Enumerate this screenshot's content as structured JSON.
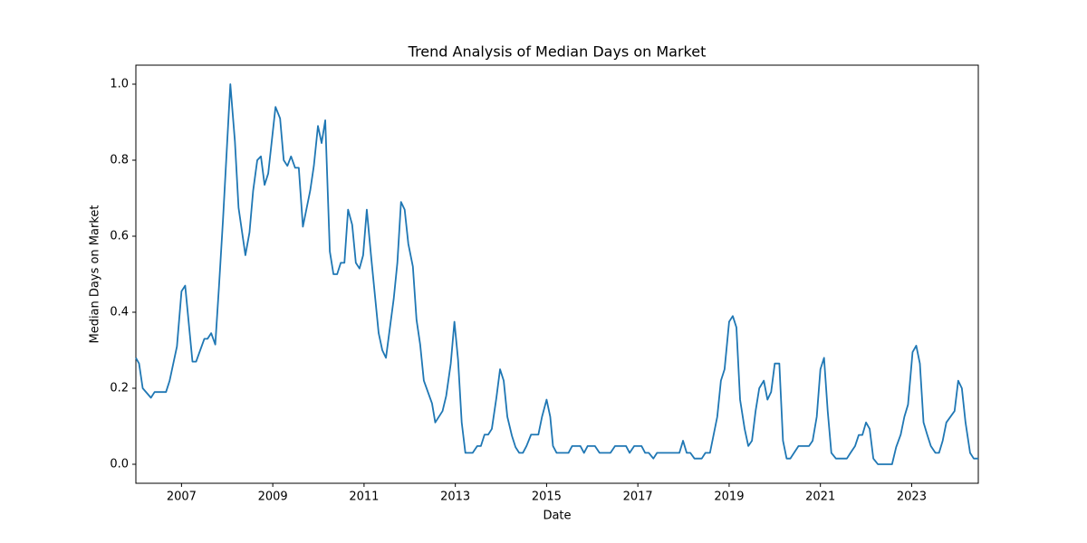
{
  "chart_data": {
    "type": "line",
    "title": "Trend Analysis of Median Days on Market",
    "x_label": "Date",
    "y_label": "Median Days on Market",
    "color": "#1f77b4",
    "x": [
      2006.0,
      2006.07,
      2006.15,
      2006.33,
      2006.41,
      2006.66,
      2006.74,
      2006.9,
      2007.0,
      2007.08,
      2007.24,
      2007.32,
      2007.5,
      2007.57,
      2007.65,
      2007.74,
      2007.82,
      2007.91,
      2008.07,
      2008.17,
      2008.25,
      2008.4,
      2008.49,
      2008.57,
      2008.66,
      2008.74,
      2008.82,
      2008.9,
      2009.06,
      2009.16,
      2009.24,
      2009.32,
      2009.4,
      2009.49,
      2009.57,
      2009.66,
      2009.82,
      2009.9,
      2009.99,
      2010.07,
      2010.15,
      2010.25,
      2010.33,
      2010.41,
      2010.49,
      2010.57,
      2010.65,
      2010.74,
      2010.82,
      2010.9,
      2010.98,
      2011.06,
      2011.16,
      2011.32,
      2011.4,
      2011.48,
      2011.65,
      2011.73,
      2011.81,
      2011.89,
      2011.97,
      2012.07,
      2012.15,
      2012.23,
      2012.31,
      2012.49,
      2012.56,
      2012.72,
      2012.8,
      2012.9,
      2012.98,
      2013.06,
      2013.14,
      2013.22,
      2013.38,
      2013.48,
      2013.56,
      2013.64,
      2013.72,
      2013.8,
      2013.9,
      2013.98,
      2014.06,
      2014.14,
      2014.24,
      2014.32,
      2014.4,
      2014.48,
      2014.56,
      2014.66,
      2014.82,
      2014.9,
      2015.0,
      2015.08,
      2015.14,
      2015.22,
      2015.48,
      2015.56,
      2015.74,
      2015.82,
      2015.9,
      2016.06,
      2016.16,
      2016.4,
      2016.5,
      2016.74,
      2016.82,
      2016.92,
      2017.08,
      2017.16,
      2017.24,
      2017.34,
      2017.42,
      2017.91,
      2017.99,
      2018.07,
      2018.15,
      2018.24,
      2018.4,
      2018.48,
      2018.58,
      2018.74,
      2018.82,
      2018.9,
      2019.0,
      2019.08,
      2019.16,
      2019.24,
      2019.34,
      2019.42,
      2019.5,
      2019.58,
      2019.66,
      2019.76,
      2019.84,
      2019.92,
      2020.0,
      2020.1,
      2020.18,
      2020.26,
      2020.34,
      2020.52,
      2020.75,
      2020.83,
      2020.92,
      2021.0,
      2021.08,
      2021.16,
      2021.24,
      2021.34,
      2021.58,
      2021.66,
      2021.76,
      2021.84,
      2021.92,
      2022.0,
      2022.08,
      2022.16,
      2022.26,
      2022.57,
      2022.66,
      2022.76,
      2022.84,
      2022.92,
      2023.02,
      2023.1,
      2023.18,
      2023.26,
      2023.34,
      2023.42,
      2023.52,
      2023.6,
      2023.68,
      2023.76,
      2023.94,
      2024.02,
      2024.1,
      2024.18,
      2024.28,
      2024.36,
      2024.46
    ],
    "values": [
      0.28,
      0.265,
      0.2,
      0.175,
      0.19,
      0.19,
      0.22,
      0.31,
      0.455,
      0.47,
      0.27,
      0.27,
      0.33,
      0.33,
      0.345,
      0.315,
      0.465,
      0.645,
      1.0,
      0.85,
      0.675,
      0.55,
      0.61,
      0.72,
      0.8,
      0.81,
      0.735,
      0.765,
      0.94,
      0.91,
      0.8,
      0.785,
      0.81,
      0.78,
      0.78,
      0.625,
      0.72,
      0.785,
      0.89,
      0.845,
      0.905,
      0.56,
      0.5,
      0.5,
      0.53,
      0.53,
      0.67,
      0.63,
      0.53,
      0.515,
      0.55,
      0.67,
      0.54,
      0.345,
      0.3,
      0.28,
      0.435,
      0.53,
      0.69,
      0.67,
      0.58,
      0.52,
      0.38,
      0.315,
      0.22,
      0.16,
      0.11,
      0.14,
      0.18,
      0.265,
      0.375,
      0.275,
      0.11,
      0.03,
      0.03,
      0.048,
      0.048,
      0.078,
      0.078,
      0.093,
      0.175,
      0.25,
      0.22,
      0.125,
      0.075,
      0.045,
      0.03,
      0.03,
      0.048,
      0.078,
      0.078,
      0.125,
      0.17,
      0.125,
      0.048,
      0.03,
      0.03,
      0.048,
      0.048,
      0.03,
      0.048,
      0.048,
      0.03,
      0.03,
      0.048,
      0.048,
      0.03,
      0.048,
      0.048,
      0.03,
      0.03,
      0.015,
      0.03,
      0.03,
      0.062,
      0.03,
      0.03,
      0.015,
      0.015,
      0.03,
      0.03,
      0.125,
      0.22,
      0.25,
      0.375,
      0.39,
      0.36,
      0.17,
      0.093,
      0.048,
      0.062,
      0.14,
      0.2,
      0.22,
      0.17,
      0.19,
      0.265,
      0.265,
      0.062,
      0.015,
      0.015,
      0.048,
      0.048,
      0.062,
      0.125,
      0.25,
      0.28,
      0.14,
      0.03,
      0.015,
      0.015,
      0.03,
      0.048,
      0.077,
      0.077,
      0.11,
      0.093,
      0.015,
      0.0,
      0.0,
      0.045,
      0.078,
      0.125,
      0.157,
      0.295,
      0.312,
      0.265,
      0.11,
      0.078,
      0.048,
      0.03,
      0.03,
      0.062,
      0.11,
      0.14,
      0.22,
      0.2,
      0.11,
      0.03,
      0.015,
      0.015
    ],
    "xlim": [
      2006.0,
      2024.46
    ],
    "xticks": [
      2007,
      2009,
      2011,
      2013,
      2015,
      2017,
      2019,
      2021,
      2023
    ],
    "ylim": [
      -0.05,
      1.05
    ],
    "yticks": [
      {
        "value": 0,
        "label": "0.0"
      },
      0.2,
      0.4,
      0.6,
      0.8,
      {
        "value": 1,
        "label": "1.0"
      }
    ]
  }
}
